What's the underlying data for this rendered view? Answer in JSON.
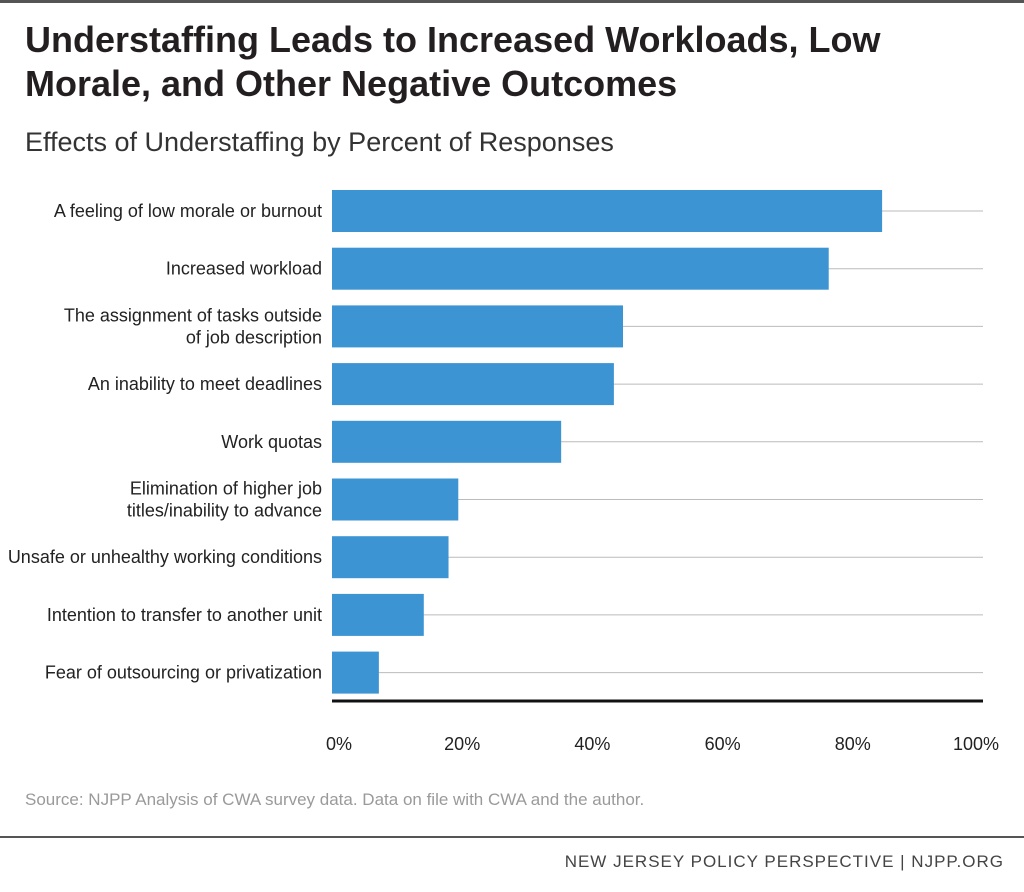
{
  "header": {
    "title": "Understaffing Leads to Increased Workloads, Low Morale, and Other Negative Outcomes",
    "subtitle": "Effects of Understaffing by Percent of Responses"
  },
  "chart_data": {
    "type": "bar",
    "orientation": "horizontal",
    "categories": [
      [
        "A feeling of low morale or burnout"
      ],
      [
        "Increased workload"
      ],
      [
        "The assignment of tasks outside",
        "of job description"
      ],
      [
        "An inability to meet deadlines"
      ],
      [
        "Work quotas"
      ],
      [
        "Elimination of higher job",
        "titles/inability to advance"
      ],
      [
        "Unsafe or unhealthy working conditions"
      ],
      [
        "Intention to transfer to another unit"
      ],
      [
        "Fear of outsourcing or privatization"
      ]
    ],
    "values": [
      84.5,
      76.3,
      44.7,
      43.3,
      35.2,
      19.4,
      17.9,
      14.1,
      7.2
    ],
    "xlim": [
      0,
      100
    ],
    "ticks": [
      0,
      20,
      40,
      60,
      80,
      100
    ],
    "tick_labels": [
      "0%",
      "20%",
      "40%",
      "60%",
      "80%",
      "100%"
    ],
    "grid": true,
    "bar_color": "#3d94d3",
    "xlabel": "",
    "ylabel": ""
  },
  "source": "Source: NJPP Analysis of CWA survey data. Data on file with CWA and the author.",
  "footer": "NEW JERSEY POLICY PERSPECTIVE | NJPP.ORG"
}
